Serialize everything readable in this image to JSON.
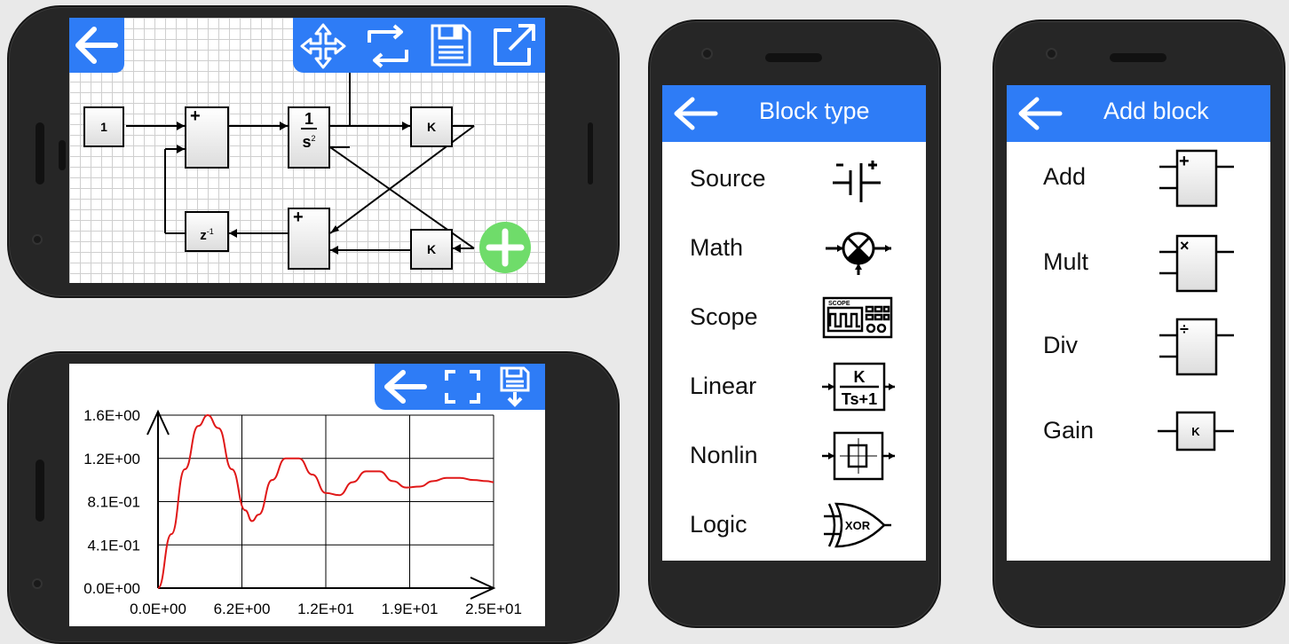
{
  "editor": {
    "blocks": {
      "const": "1",
      "sum1_sign": "+",
      "integrator_num": "1",
      "integrator_den": "s",
      "integrator_exp": "2",
      "gain1": "K",
      "gain2": "K",
      "sum2_sign": "+",
      "delay": "z",
      "delay_exp": "-1"
    },
    "icons": [
      "back-arrow-icon",
      "move-icon",
      "rotate-icon",
      "save-icon",
      "export-icon",
      "add-icon"
    ],
    "fab_color": "#6fdc6a"
  },
  "plot": {
    "icons": [
      "back-arrow-icon",
      "fullscreen-icon",
      "save-plot-icon"
    ],
    "chart_data": {
      "type": "line",
      "x_ticks": [
        "0.0E+00",
        "6.2E+00",
        "1.2E+01",
        "1.9E+01",
        "2.5E+01"
      ],
      "y_ticks": [
        "1.6E+00",
        "1.2E+00",
        "8.1E-01",
        "4.1E-01",
        "0.0E+00"
      ],
      "xlim": [
        0,
        25
      ],
      "ylim": [
        0,
        1.6
      ],
      "grid": true,
      "series": [
        {
          "color": "#e01818",
          "x": [
            0,
            1,
            2,
            3,
            3.7,
            4.5,
            5.5,
            6.5,
            7,
            7.5,
            8.5,
            9.5,
            10.5,
            11.5,
            12.5,
            13.5,
            14.5,
            15.5,
            16.5,
            17.5,
            18.5,
            19.5,
            20.5,
            21.5,
            22.5,
            23.5,
            24.5,
            25
          ],
          "y": [
            0,
            0.5,
            1.1,
            1.5,
            1.6,
            1.48,
            1.1,
            0.72,
            0.62,
            0.68,
            1.0,
            1.2,
            1.2,
            1.05,
            0.88,
            0.86,
            0.98,
            1.08,
            1.08,
            0.99,
            0.93,
            0.94,
            0.99,
            1.02,
            1.02,
            1.0,
            0.99,
            0.98
          ]
        }
      ]
    }
  },
  "block_type": {
    "title": "Block type",
    "items": [
      {
        "label": "Source",
        "icon": "battery-icon"
      },
      {
        "label": "Math",
        "icon": "summing-junction-icon"
      },
      {
        "label": "Scope",
        "icon": "oscilloscope-icon"
      },
      {
        "label": "Linear",
        "icon": "transfer-function-icon"
      },
      {
        "label": "Nonlin",
        "icon": "hysteresis-icon"
      },
      {
        "label": "Logic",
        "icon": "xor-gate-icon"
      }
    ],
    "icon_text": {
      "scope": "SCOPE",
      "tf_num": "K",
      "tf_den": "Ts+1",
      "xor": "XOR"
    }
  },
  "add_block": {
    "title": "Add block",
    "items": [
      {
        "label": "Add",
        "symbol": "+"
      },
      {
        "label": "Mult",
        "symbol": "×"
      },
      {
        "label": "Div",
        "symbol": "÷"
      },
      {
        "label": "Gain",
        "symbol": "K"
      }
    ]
  },
  "colors": {
    "accent": "#2e7cf6",
    "plot_line": "#e01818"
  }
}
